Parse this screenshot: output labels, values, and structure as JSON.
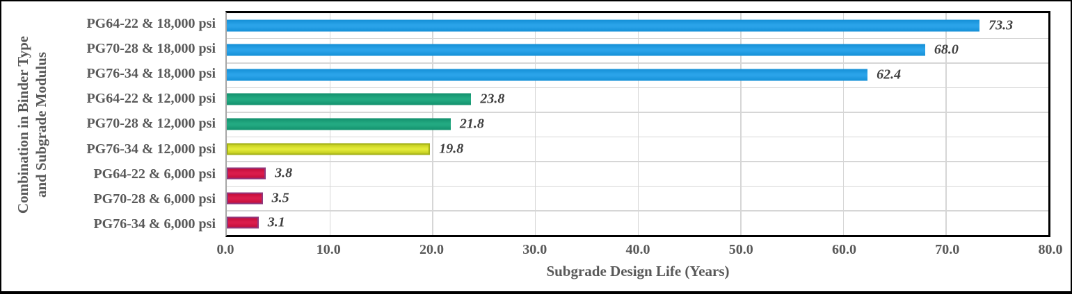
{
  "chart_data": {
    "type": "bar",
    "orientation": "horizontal",
    "title": "",
    "xlabel": "Subgrade Design Life (Years)",
    "ylabel_lines": [
      "Combination in Binder Type",
      "and Subgrade Modulus"
    ],
    "xlim": [
      0,
      80
    ],
    "x_ticks": [
      "0.0",
      "10.0",
      "20.0",
      "30.0",
      "40.0",
      "50.0",
      "60.0",
      "70.0",
      "80.0"
    ],
    "grid": true,
    "legend": "none",
    "bars": [
      {
        "category": "PG64-22 & 18,000 psi",
        "value": 73.3,
        "value_label": "73.3",
        "color": "blue"
      },
      {
        "category": "PG70-28 & 18,000 psi",
        "value": 68.0,
        "value_label": "68.0",
        "color": "blue"
      },
      {
        "category": "PG76-34 & 18,000 psi",
        "value": 62.4,
        "value_label": "62.4",
        "color": "blue"
      },
      {
        "category": "PG64-22 & 12,000 psi",
        "value": 23.8,
        "value_label": "23.8",
        "color": "teal"
      },
      {
        "category": "PG70-28 & 12,000 psi",
        "value": 21.8,
        "value_label": "21.8",
        "color": "teal"
      },
      {
        "category": "PG76-34 & 12,000 psi",
        "value": 19.8,
        "value_label": "19.8",
        "color": "yellow"
      },
      {
        "category": "PG64-22 & 6,000 psi",
        "value": 3.8,
        "value_label": "3.8",
        "color": "crimson"
      },
      {
        "category": "PG70-28 & 6,000 psi",
        "value": 3.5,
        "value_label": "3.5",
        "color": "crimson"
      },
      {
        "category": "PG76-34 & 6,000 psi",
        "value": 3.1,
        "value_label": "3.1",
        "color": "crimson"
      }
    ],
    "colors": {
      "blue": {
        "fill_dark": "#148FD6",
        "fill_light": "#2AA3E9",
        "border": "none"
      },
      "teal": {
        "fill_dark": "#13906C",
        "fill_light": "#22A981",
        "border": "none"
      },
      "yellow": {
        "fill_dark": "#C2CC1F",
        "fill_light": "#E2EA38",
        "border": "#A3B019"
      },
      "crimson": {
        "fill_dark": "#C40E3C",
        "fill_light": "#DA1C4C",
        "border": "#90397E"
      }
    },
    "text_colors": {
      "axis_labels": "#595959",
      "data_labels": "#3F3F3F"
    },
    "gridline_color": "#D6D6D6",
    "axis_line_color": "#000000",
    "value_axis_line_color": "#A6A6A6"
  }
}
